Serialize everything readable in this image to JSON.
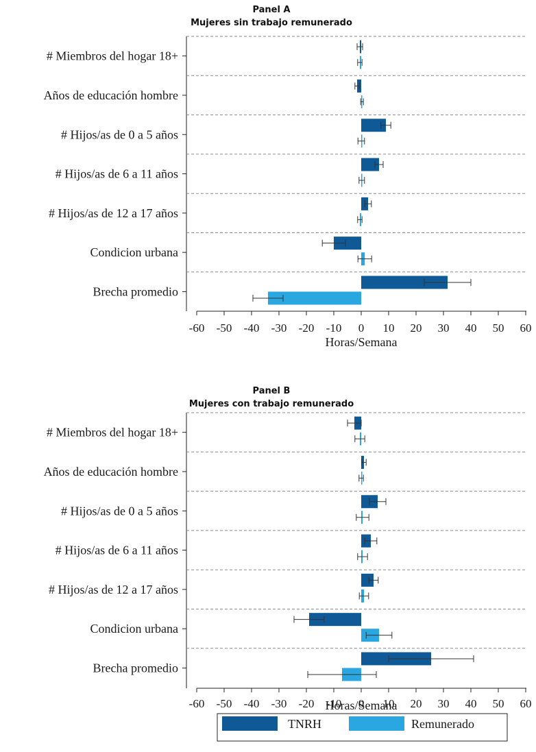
{
  "legend": {
    "position": "bottom",
    "entries": [
      {
        "label": "TNRH",
        "color": "#0f5a96"
      },
      {
        "label": "Remunerado",
        "color": "#2aa7e1"
      }
    ]
  },
  "chart_data": [
    {
      "type": "bar",
      "orientation": "horizontal",
      "panel": "Panel A",
      "title": "Mujeres sin trabajo remunerado",
      "xlabel": "Horas/Semana",
      "xlim": [
        -60,
        60
      ],
      "xticks": [
        -60,
        -50,
        -40,
        -30,
        -20,
        -10,
        0,
        10,
        20,
        30,
        40,
        50,
        60
      ],
      "categories": [
        "# Miembros del hogar 18+",
        "Años de educación hombre",
        "# Hijos/as de 0 a 5 años",
        "# Hijos/as de 6 a 11 años",
        "# Hijos/as de 12 a 17 años",
        "Condicion urbana",
        "Brecha promedio"
      ],
      "series": [
        {
          "name": "TNRH",
          "color": "#0f5a96",
          "values": [
            -0.5,
            -1.5,
            9.0,
            6.5,
            2.5,
            -10.0,
            31.5
          ],
          "ci": [
            [
              -1.5,
              0.5
            ],
            [
              -2.3,
              -0.7
            ],
            [
              7.2,
              10.8
            ],
            [
              5.0,
              8.0
            ],
            [
              1.3,
              3.7
            ],
            [
              -14.2,
              -5.8
            ],
            [
              23.0,
              40.0
            ]
          ]
        },
        {
          "name": "Remunerado",
          "color": "#2aa7e1",
          "values": [
            -0.5,
            0.3,
            0.0,
            0.2,
            -0.5,
            1.3,
            -34.0
          ],
          "ci": [
            [
              -1.3,
              0.3
            ],
            [
              -0.2,
              0.8
            ],
            [
              -1.2,
              1.2
            ],
            [
              -0.8,
              1.2
            ],
            [
              -1.3,
              0.3
            ],
            [
              -1.2,
              3.8
            ],
            [
              -39.5,
              -28.5
            ]
          ]
        }
      ],
      "grid": false
    },
    {
      "type": "bar",
      "orientation": "horizontal",
      "panel": "Panel B",
      "title": "Mujeres con trabajo remunerado",
      "xlabel": "Horas/Semana",
      "xlim": [
        -60,
        60
      ],
      "xticks": [
        -60,
        -50,
        -40,
        -30,
        -20,
        -10,
        0,
        10,
        20,
        30,
        40,
        50,
        60
      ],
      "categories": [
        "# Miembros del hogar 18+",
        "Años de educación hombre",
        "# Hijos/as de 0 a 5 años",
        "# Hijos/as de 6 a 11 años",
        "# Hijos/as de 12 a 17 años",
        "Condicion urbana",
        "Brecha promedio"
      ],
      "series": [
        {
          "name": "TNRH",
          "color": "#0f5a96",
          "values": [
            -2.5,
            1.0,
            6.0,
            3.5,
            4.5,
            -19.0,
            25.5
          ],
          "ci": [
            [
              -5.0,
              0.0
            ],
            [
              0.2,
              1.8
            ],
            [
              3.0,
              9.0
            ],
            [
              1.3,
              5.7
            ],
            [
              2.8,
              6.2
            ],
            [
              -24.5,
              -13.5
            ],
            [
              10.0,
              41.0
            ]
          ]
        },
        {
          "name": "Remunerado",
          "color": "#2aa7e1",
          "values": [
            -0.5,
            0.0,
            0.5,
            0.5,
            1.0,
            6.5,
            -7.0
          ],
          "ci": [
            [
              -2.3,
              1.3
            ],
            [
              -0.8,
              0.8
            ],
            [
              -1.8,
              2.8
            ],
            [
              -1.3,
              2.3
            ],
            [
              -0.7,
              2.7
            ],
            [
              1.8,
              11.2
            ],
            [
              -19.5,
              5.5
            ]
          ]
        }
      ],
      "grid": false
    }
  ]
}
